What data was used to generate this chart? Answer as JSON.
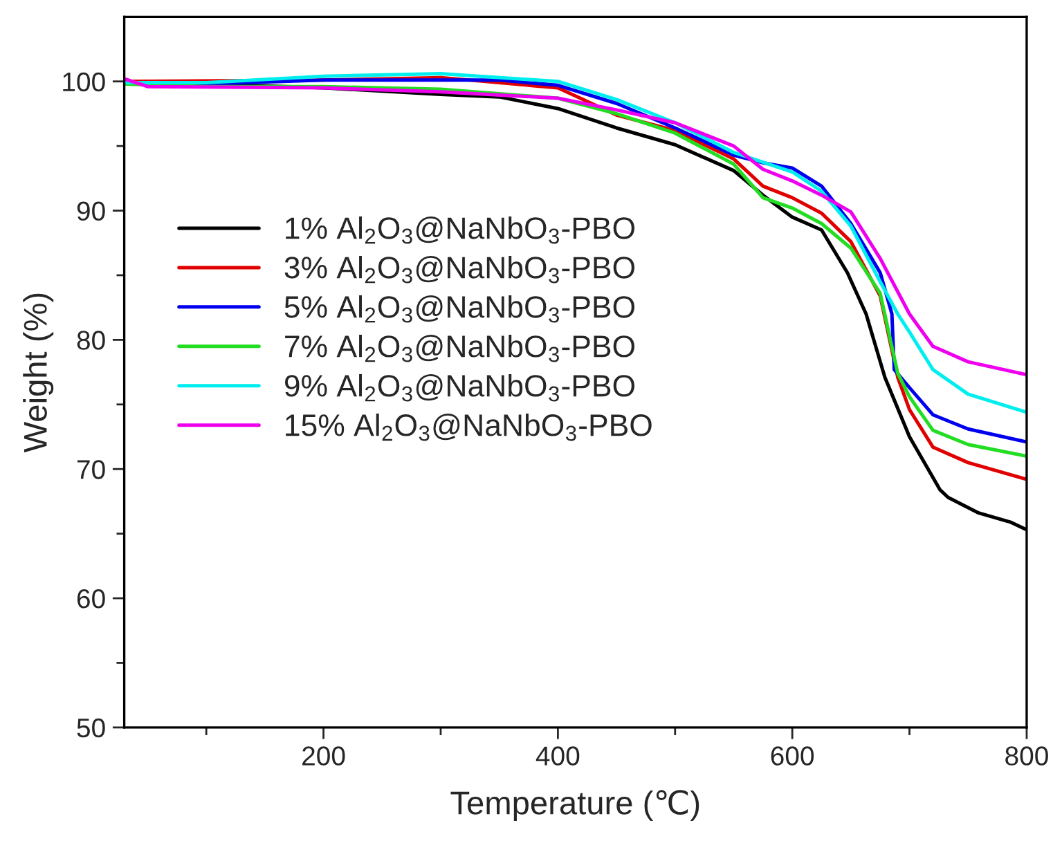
{
  "chart_data": {
    "type": "line",
    "xlabel": "Temperature (℃)",
    "ylabel": "Weight (%)",
    "xlim": [
      30,
      800
    ],
    "ylim": [
      50,
      105
    ],
    "xticks": [
      {
        "value": 100,
        "label": null
      },
      200,
      {
        "value": 300,
        "label": null
      },
      400,
      {
        "value": 500,
        "label": null
      },
      600,
      {
        "value": 700,
        "label": null
      },
      800
    ],
    "yticks": [
      50,
      {
        "value": 55,
        "label": null
      },
      60,
      {
        "value": 65,
        "label": null
      },
      70,
      {
        "value": 75,
        "label": null
      },
      80,
      {
        "value": 85,
        "label": null
      },
      90,
      {
        "value": 95,
        "label": null
      },
      100
    ],
    "grid": false,
    "legend": "left",
    "marker": "none",
    "line_style": "solid",
    "series": [
      {
        "name": "1% Al$_{2}$O$_{3}$@NaNbO$_{3}$-PBO",
        "color": "#000000",
        "x": [
          30,
          100,
          200,
          300,
          350,
          400,
          450,
          500,
          550,
          575,
          600,
          625,
          647,
          663,
          679,
          700,
          726,
          733,
          759,
          786,
          800
        ],
        "values": [
          100.0,
          99.8,
          99.5,
          99.0,
          98.8,
          97.9,
          96.4,
          95.1,
          93.1,
          91.2,
          89.5,
          88.5,
          85.2,
          82.0,
          77.1,
          72.5,
          68.4,
          67.8,
          66.6,
          65.9,
          65.3
        ]
      },
      {
        "name": "3% Al$_{2}$O$_{3}$@NaNbO$_{3}$-PBO",
        "color": "#e00000",
        "x": [
          30,
          200,
          300,
          400,
          450,
          500,
          550,
          575,
          600,
          625,
          650,
          675,
          690,
          700,
          720,
          750,
          800
        ],
        "values": [
          100.0,
          100.1,
          100.3,
          99.5,
          97.4,
          96.2,
          94.0,
          91.9,
          91.0,
          89.8,
          87.6,
          83.4,
          77.1,
          74.6,
          71.7,
          70.5,
          69.2
        ]
      },
      {
        "name": "5% Al$_{2}$O$_{3}$@NaNbO$_{3}$-PBO",
        "color": "#0000ee",
        "x": [
          30,
          100,
          200,
          300,
          350,
          400,
          450,
          500,
          550,
          575,
          600,
          625,
          650,
          675,
          685,
          687,
          700,
          720,
          750,
          800
        ],
        "values": [
          99.9,
          99.8,
          100.1,
          100.1,
          100.1,
          99.7,
          98.3,
          96.4,
          94.3,
          93.7,
          93.3,
          91.9,
          89.0,
          85.2,
          82.0,
          77.7,
          76.3,
          74.2,
          73.1,
          72.1
        ]
      },
      {
        "name": "7% Al$_{2}$O$_{3}$@NaNbO$_{3}$-PBO",
        "color": "#22dd22",
        "x": [
          30,
          100,
          200,
          300,
          400,
          450,
          500,
          550,
          575,
          600,
          625,
          650,
          675,
          690,
          700,
          720,
          750,
          800
        ],
        "values": [
          99.8,
          99.6,
          99.6,
          99.4,
          98.7,
          97.5,
          96.0,
          93.6,
          91.0,
          90.2,
          89.0,
          87.1,
          83.6,
          77.4,
          75.6,
          73.0,
          71.9,
          71.0
        ]
      },
      {
        "name": "9% Al$_{2}$O$_{3}$@NaNbO$_{3}$-PBO",
        "color": "#00eeee",
        "x": [
          30,
          100,
          200,
          300,
          400,
          450,
          500,
          550,
          600,
          625,
          650,
          675,
          690,
          700,
          720,
          750,
          800
        ],
        "values": [
          99.9,
          99.9,
          100.4,
          100.6,
          100.0,
          98.6,
          96.8,
          94.5,
          93.0,
          91.5,
          88.8,
          84.5,
          82.0,
          80.6,
          77.7,
          75.8,
          74.4
        ]
      },
      {
        "name": "15% Al$_{2}$O$_{3}$@NaNbO$_{3}$-PBO",
        "color": "#ee00ee",
        "x": [
          30,
          50,
          200,
          300,
          400,
          450,
          500,
          550,
          575,
          600,
          625,
          650,
          675,
          700,
          720,
          750,
          800
        ],
        "values": [
          100.2,
          99.6,
          99.5,
          99.2,
          98.7,
          97.8,
          96.8,
          95.0,
          93.2,
          92.3,
          91.2,
          89.9,
          86.3,
          82.0,
          79.5,
          78.3,
          77.3
        ]
      }
    ]
  }
}
